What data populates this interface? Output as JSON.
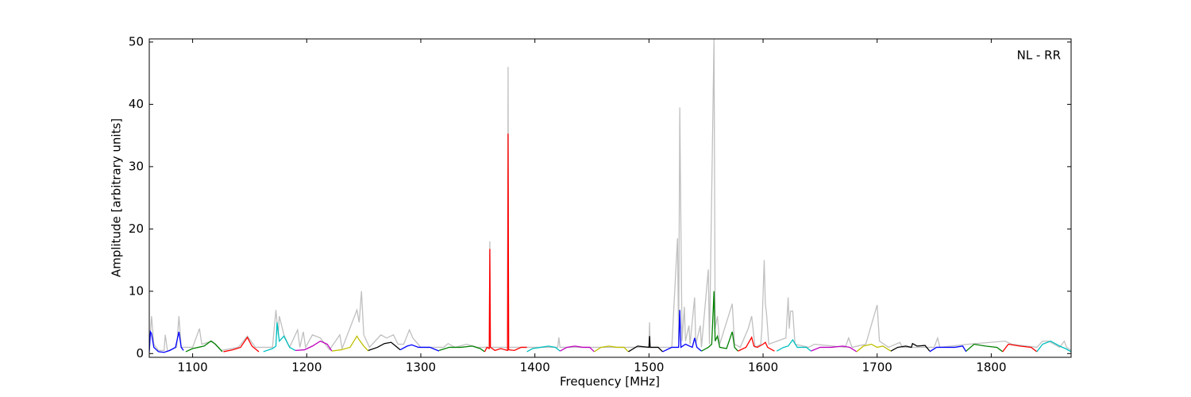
{
  "chart_data": {
    "type": "line",
    "x_label": "Frequency [MHz]",
    "y_label": "Amplitude [arbitrary units]",
    "annotation": "NL - RR",
    "xlim": [
      1062,
      1870
    ],
    "ylim": [
      -0.6,
      50.5
    ],
    "xticks": [
      1100,
      1200,
      1300,
      1400,
      1500,
      1600,
      1700,
      1800
    ],
    "yticks": [
      0,
      10,
      20,
      30,
      40,
      50
    ],
    "series": [
      {
        "color": "#c0c0c0",
        "x": [
          1062,
          1064,
          1066,
          1070,
          1075,
          1076,
          1078,
          1086,
          1088,
          1090,
          1100,
          1106,
          1108,
          1117,
          1125,
          1140,
          1148,
          1155,
          1170,
          1173,
          1175,
          1176,
          1180,
          1185,
          1192,
          1194,
          1197,
          1199,
          1205,
          1212,
          1220,
          1229,
          1231,
          1244,
          1246,
          1248,
          1250,
          1255,
          1265,
          1270,
          1276,
          1280,
          1285,
          1290,
          1293,
          1300,
          1320,
          1324,
          1330,
          1340,
          1350,
          1360,
          1360.5,
          1361,
          1376,
          1376.5,
          1377,
          1390,
          1420,
          1421,
          1422,
          1500,
          1500.5,
          1501,
          1520,
          1525,
          1526,
          1527,
          1528,
          1529,
          1531,
          1532,
          1535,
          1536,
          1540,
          1541,
          1545,
          1546,
          1552,
          1553,
          1557,
          1558,
          1560,
          1562,
          1573,
          1575,
          1580,
          1587,
          1590,
          1593,
          1598,
          1599,
          1601,
          1602,
          1603,
          1605,
          1620,
          1622,
          1623,
          1624,
          1626,
          1628,
          1640,
          1645,
          1672,
          1675,
          1678,
          1690,
          1700,
          1702,
          1710,
          1720,
          1722,
          1750,
          1753,
          1755,
          1780,
          1812,
          1818,
          1840,
          1845,
          1850,
          1860,
          1864,
          1866,
          1870
        ],
        "values": [
          0.5,
          6,
          1.5,
          0.5,
          0.5,
          3,
          0.4,
          1,
          6,
          1,
          1,
          4,
          1.5,
          2,
          0.5,
          1,
          2.8,
          1,
          1,
          7,
          3,
          6,
          3,
          1,
          3.8,
          1,
          3.5,
          1,
          3,
          2.5,
          0.6,
          3,
          0.8,
          7,
          5,
          10,
          3,
          1,
          3,
          2.5,
          3,
          1.5,
          1.5,
          3.8,
          2.5,
          1,
          1,
          1.6,
          1,
          1.5,
          1,
          1,
          18,
          1,
          1,
          46,
          1,
          1,
          1,
          2.6,
          1,
          1,
          5,
          1,
          1,
          18.5,
          2,
          39.5,
          20,
          2,
          7.5,
          2,
          4.5,
          1.5,
          9,
          1.5,
          4.5,
          1,
          13.5,
          1.5,
          50.5,
          4,
          6,
          1.5,
          8,
          1.5,
          1,
          4,
          6,
          1,
          1.5,
          4,
          15,
          8,
          6.5,
          1.5,
          2.5,
          9,
          4,
          6.8,
          6.8,
          1.5,
          1,
          1.5,
          1,
          2.5,
          1,
          1.5,
          7.8,
          2,
          1,
          1.8,
          1,
          1,
          2.5,
          1,
          1.5,
          2,
          1.5,
          1,
          2,
          2,
          1,
          2,
          1,
          0.5
        ]
      },
      {
        "color": "#0000ff",
        "x": [
          1062,
          1063,
          1064,
          1066,
          1070,
          1075,
          1080,
          1085,
          1088,
          1090,
          1092
        ],
        "values": [
          0.3,
          3.5,
          3.2,
          1,
          0.3,
          0.2,
          0.5,
          1,
          3.5,
          1,
          0.5
        ]
      },
      {
        "color": "#008000",
        "x": [
          1094,
          1100,
          1110,
          1116,
          1120,
          1126
        ],
        "values": [
          0.3,
          0.8,
          1.2,
          2,
          1.5,
          0.3
        ]
      },
      {
        "color": "#ff0000",
        "x": [
          1127,
          1135,
          1142,
          1148,
          1152,
          1158
        ],
        "values": [
          0.3,
          0.6,
          1,
          2.6,
          1.2,
          0.3
        ]
      },
      {
        "color": "#00bfbf",
        "x": [
          1162,
          1170,
          1173,
          1174,
          1176,
          1180,
          1185,
          1190
        ],
        "values": [
          0.3,
          0.8,
          1.2,
          5,
          2,
          2.8,
          1,
          0.5
        ]
      },
      {
        "color": "#bf00bf",
        "x": [
          1190,
          1198,
          1205,
          1212,
          1218,
          1222
        ],
        "values": [
          0.5,
          0.6,
          1.2,
          2,
          1.5,
          0.4
        ]
      },
      {
        "color": "#bfbf00",
        "x": [
          1222,
          1230,
          1238,
          1244,
          1246,
          1250,
          1254
        ],
        "values": [
          0.4,
          0.6,
          1,
          2.8,
          2.2,
          1.2,
          0.4
        ]
      },
      {
        "color": "#000000",
        "x": [
          1254,
          1262,
          1268,
          1274,
          1278,
          1282
        ],
        "values": [
          0.5,
          1,
          1.6,
          1.8,
          1.2,
          0.6
        ]
      },
      {
        "color": "#0000ff",
        "x": [
          1282,
          1288,
          1292,
          1298,
          1308,
          1316
        ],
        "values": [
          0.6,
          1.2,
          1.4,
          1,
          1,
          0.4
        ]
      },
      {
        "color": "#008000",
        "x": [
          1316,
          1325,
          1335,
          1345,
          1352,
          1356
        ],
        "values": [
          0.5,
          1,
          1,
          1.2,
          0.8,
          0.3
        ]
      },
      {
        "color": "#ff0000",
        "x": [
          1356,
          1358,
          1360,
          1360.5,
          1361,
          1365,
          1370,
          1376,
          1376.5,
          1377,
          1382,
          1388,
          1393
        ],
        "values": [
          0.3,
          1,
          0.8,
          16.8,
          1,
          0.5,
          0.8,
          0.5,
          35.3,
          0.6,
          0.5,
          1,
          1
        ]
      },
      {
        "color": "#00bfbf",
        "x": [
          1393,
          1398,
          1405,
          1412,
          1418,
          1422
        ],
        "values": [
          0.3,
          0.8,
          1,
          1.2,
          1,
          0.4
        ]
      },
      {
        "color": "#bf00bf",
        "x": [
          1422,
          1428,
          1435,
          1442,
          1448,
          1452
        ],
        "values": [
          0.4,
          1,
          1.2,
          1,
          1,
          0.3
        ]
      },
      {
        "color": "#bfbf00",
        "x": [
          1452,
          1458,
          1465,
          1472,
          1478,
          1482
        ],
        "values": [
          0.3,
          1,
          1.2,
          1,
          1,
          0.3
        ]
      },
      {
        "color": "#000000",
        "x": [
          1482,
          1490,
          1500,
          1500.5,
          1501,
          1508,
          1512
        ],
        "values": [
          0.3,
          1.2,
          1,
          2.8,
          1,
          1,
          0.3
        ]
      },
      {
        "color": "#0000ff",
        "x": [
          1512,
          1520,
          1526,
          1527,
          1528,
          1532,
          1538,
          1540,
          1542,
          1546
        ],
        "values": [
          0.3,
          1,
          1,
          7,
          1,
          1.5,
          1,
          2.5,
          1,
          0.4
        ]
      },
      {
        "color": "#008000",
        "x": [
          1546,
          1552,
          1555,
          1557,
          1558,
          1560,
          1562,
          1568,
          1573,
          1575,
          1578
        ],
        "values": [
          0.4,
          1,
          1.5,
          10,
          2,
          2.8,
          1,
          0.8,
          3.5,
          1,
          0.4
        ]
      },
      {
        "color": "#ff0000",
        "x": [
          1578,
          1585,
          1590,
          1592,
          1595,
          1600,
          1602,
          1604,
          1610
        ],
        "values": [
          0.4,
          1,
          2.6,
          1.2,
          1,
          1.5,
          1.8,
          1,
          0.4
        ]
      },
      {
        "color": "#00bfbf",
        "x": [
          1612,
          1618,
          1622,
          1626,
          1630,
          1638,
          1642
        ],
        "values": [
          0.4,
          1,
          1.2,
          2.2,
          1,
          1,
          0.4
        ]
      },
      {
        "color": "#bf00bf",
        "x": [
          1642,
          1650,
          1660,
          1670,
          1676,
          1682
        ],
        "values": [
          0.4,
          1,
          1,
          1.2,
          1,
          0.3
        ]
      },
      {
        "color": "#bfbf00",
        "x": [
          1682,
          1688,
          1695,
          1700,
          1705,
          1712
        ],
        "values": [
          0.3,
          1.2,
          1.5,
          1,
          1.2,
          0.4
        ]
      },
      {
        "color": "#000000",
        "x": [
          1712,
          1718,
          1725,
          1730,
          1731,
          1735,
          1742,
          1746
        ],
        "values": [
          0.4,
          1,
          1.2,
          1,
          1.6,
          1.2,
          1.3,
          0.4
        ]
      },
      {
        "color": "#0000ff",
        "x": [
          1746,
          1752,
          1760,
          1768,
          1775,
          1778
        ],
        "values": [
          0.3,
          1,
          1,
          1,
          1.2,
          0.3
        ]
      },
      {
        "color": "#008000",
        "x": [
          1778,
          1785,
          1795,
          1805,
          1810
        ],
        "values": [
          0.4,
          1.5,
          1.2,
          1,
          0.3
        ]
      },
      {
        "color": "#ff0000",
        "x": [
          1810,
          1815,
          1825,
          1835,
          1840
        ],
        "values": [
          0.3,
          1.5,
          1.2,
          1,
          0.3
        ]
      },
      {
        "color": "#00bfbf",
        "x": [
          1840,
          1845,
          1852,
          1860,
          1865,
          1870
        ],
        "values": [
          0.3,
          1.5,
          2,
          1.2,
          0.8,
          0.3
        ]
      }
    ]
  }
}
